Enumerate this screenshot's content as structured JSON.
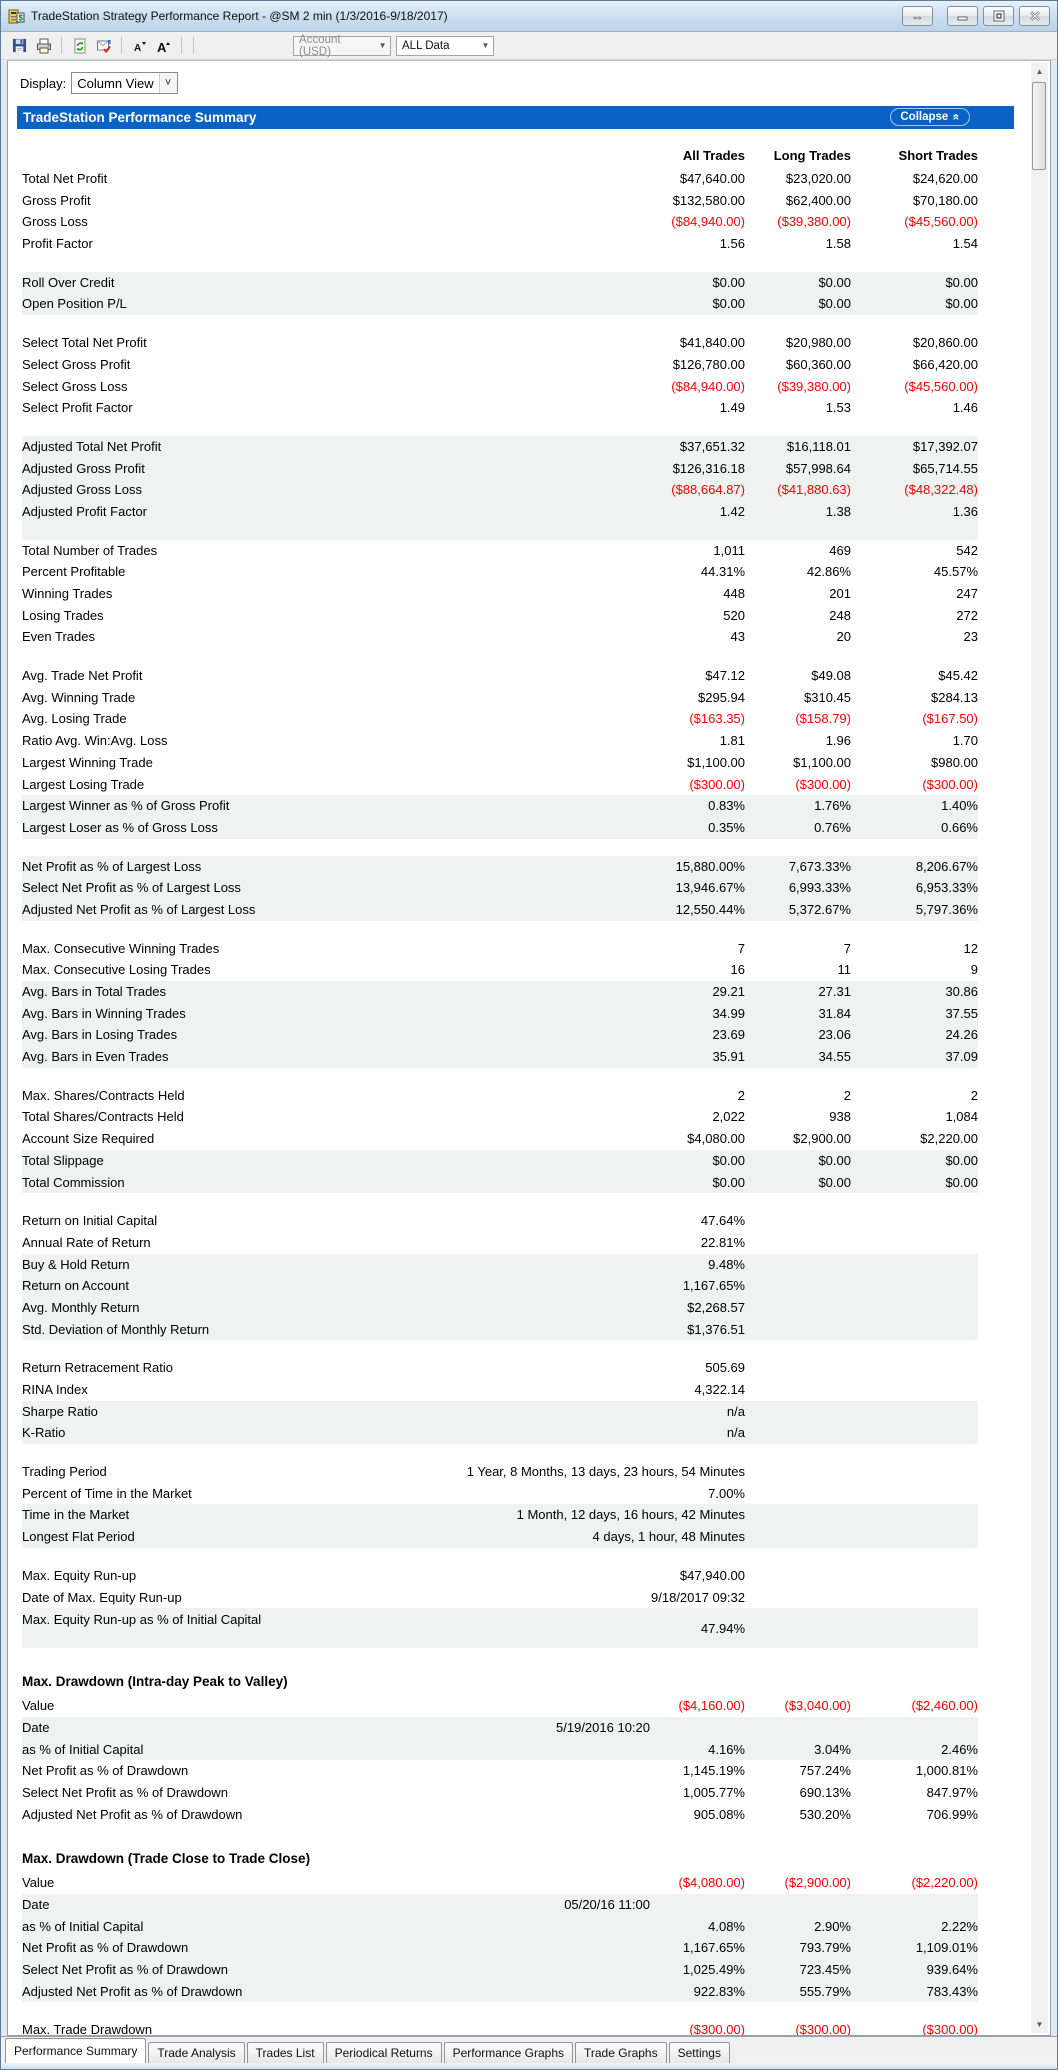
{
  "window": {
    "title": "TradeStation Strategy Performance Report - @SM 2 min (1/3/2016-9/18/2017)",
    "button_icons": [
      "dock-icon",
      "minimize-icon",
      "maximize-icon",
      "close-icon"
    ]
  },
  "toolbar": {
    "icons": [
      "save-icon",
      "print-icon",
      "refresh-icon",
      "export-report-icon",
      "decrease-font-icon",
      "increase-font-icon"
    ],
    "account_dropdown": {
      "value": "Account (USD)",
      "disabled": true
    },
    "data_dropdown": {
      "value": "ALL Data"
    }
  },
  "display": {
    "label": "Display:",
    "value": "Column View"
  },
  "summary_header": {
    "title": "TradeStation Performance Summary",
    "collapse_label": "Collapse"
  },
  "table": {
    "columns": [
      "All Trades",
      "Long Trades",
      "Short Trades"
    ],
    "rows": [
      {
        "label": "Total Net Profit",
        "values": [
          "$47,640.00",
          "$23,020.00",
          "$24,620.00"
        ]
      },
      {
        "label": "Gross Profit",
        "values": [
          "$132,580.00",
          "$62,400.00",
          "$70,180.00"
        ]
      },
      {
        "label": "Gross Loss",
        "values": [
          "($84,940.00)",
          "($39,380.00)",
          "($45,560.00)"
        ],
        "red": true
      },
      {
        "label": "Profit Factor",
        "values": [
          "1.56",
          "1.58",
          "1.54"
        ]
      },
      {
        "blank": true
      },
      {
        "label": "Roll Over Credit",
        "values": [
          "$0.00",
          "$0.00",
          "$0.00"
        ],
        "shade": true
      },
      {
        "label": "Open Position P/L",
        "values": [
          "$0.00",
          "$0.00",
          "$0.00"
        ],
        "shade": true
      },
      {
        "blank": true
      },
      {
        "label": "Select Total Net Profit",
        "values": [
          "$41,840.00",
          "$20,980.00",
          "$20,860.00"
        ]
      },
      {
        "label": "Select Gross Profit",
        "values": [
          "$126,780.00",
          "$60,360.00",
          "$66,420.00"
        ]
      },
      {
        "label": "Select Gross Loss",
        "values": [
          "($84,940.00)",
          "($39,380.00)",
          "($45,560.00)"
        ],
        "red": true
      },
      {
        "label": "Select Profit Factor",
        "values": [
          "1.49",
          "1.53",
          "1.46"
        ]
      },
      {
        "blank": true
      },
      {
        "label": "Adjusted Total Net Profit",
        "values": [
          "$37,651.32",
          "$16,118.01",
          "$17,392.07"
        ],
        "shade": true
      },
      {
        "label": "Adjusted Gross Profit",
        "values": [
          "$126,316.18",
          "$57,998.64",
          "$65,714.55"
        ],
        "shade": true
      },
      {
        "label": "Adjusted Gross Loss",
        "values": [
          "($88,664.87)",
          "($41,880.63)",
          "($48,322.48)"
        ],
        "red": true,
        "shade": true
      },
      {
        "label": "Adjusted Profit Factor",
        "values": [
          "1.42",
          "1.38",
          "1.36"
        ],
        "shade": true
      },
      {
        "blank": true,
        "shade": true
      },
      {
        "label": "Total Number of Trades",
        "values": [
          "1,011",
          "469",
          "542"
        ]
      },
      {
        "label": "Percent Profitable",
        "values": [
          "44.31%",
          "42.86%",
          "45.57%"
        ]
      },
      {
        "label": "Winning Trades",
        "values": [
          "448",
          "201",
          "247"
        ]
      },
      {
        "label": "Losing Trades",
        "values": [
          "520",
          "248",
          "272"
        ]
      },
      {
        "label": "Even Trades",
        "values": [
          "43",
          "20",
          "23"
        ]
      },
      {
        "blank": true
      },
      {
        "label": "Avg. Trade Net Profit",
        "values": [
          "$47.12",
          "$49.08",
          "$45.42"
        ]
      },
      {
        "label": "Avg. Winning Trade",
        "values": [
          "$295.94",
          "$310.45",
          "$284.13"
        ]
      },
      {
        "label": "Avg. Losing Trade",
        "values": [
          "($163.35)",
          "($158.79)",
          "($167.50)"
        ],
        "red": true
      },
      {
        "label": "Ratio Avg. Win:Avg. Loss",
        "values": [
          "1.81",
          "1.96",
          "1.70"
        ]
      },
      {
        "label": "Largest Winning Trade",
        "values": [
          "$1,100.00",
          "$1,100.00",
          "$980.00"
        ]
      },
      {
        "label": "Largest Losing Trade",
        "values": [
          "($300.00)",
          "($300.00)",
          "($300.00)"
        ],
        "red": true
      },
      {
        "label": "Largest Winner as % of Gross Profit",
        "values": [
          "0.83%",
          "1.76%",
          "1.40%"
        ],
        "shade": true
      },
      {
        "label": "Largest Loser as % of Gross Loss",
        "values": [
          "0.35%",
          "0.76%",
          "0.66%"
        ],
        "shade": true
      },
      {
        "blank": true
      },
      {
        "label": "Net Profit as % of Largest Loss",
        "values": [
          "15,880.00%",
          "7,673.33%",
          "8,206.67%"
        ],
        "shade": true
      },
      {
        "label": "Select Net Profit as % of Largest Loss",
        "values": [
          "13,946.67%",
          "6,993.33%",
          "6,953.33%"
        ],
        "shade": true
      },
      {
        "label": "Adjusted Net Profit as % of Largest Loss",
        "values": [
          "12,550.44%",
          "5,372.67%",
          "5,797.36%"
        ],
        "shade": true
      },
      {
        "blank": true
      },
      {
        "label": "Max. Consecutive Winning Trades",
        "values": [
          "7",
          "7",
          "12"
        ]
      },
      {
        "label": "Max. Consecutive Losing Trades",
        "values": [
          "16",
          "11",
          "9"
        ]
      },
      {
        "label": "Avg. Bars in Total Trades",
        "values": [
          "29.21",
          "27.31",
          "30.86"
        ],
        "shade": true
      },
      {
        "label": "Avg. Bars in Winning Trades",
        "values": [
          "34.99",
          "31.84",
          "37.55"
        ],
        "shade": true
      },
      {
        "label": "Avg. Bars in Losing Trades",
        "values": [
          "23.69",
          "23.06",
          "24.26"
        ],
        "shade": true
      },
      {
        "label": "Avg. Bars in Even Trades",
        "values": [
          "35.91",
          "34.55",
          "37.09"
        ],
        "shade": true
      },
      {
        "blank": true
      },
      {
        "label": "Max. Shares/Contracts Held",
        "values": [
          "2",
          "2",
          "2"
        ]
      },
      {
        "label": "Total Shares/Contracts Held",
        "values": [
          "2,022",
          "938",
          "1,084"
        ]
      },
      {
        "label": "Account Size Required",
        "values": [
          "$4,080.00",
          "$2,900.00",
          "$2,220.00"
        ]
      },
      {
        "label": "Total Slippage",
        "values": [
          "$0.00",
          "$0.00",
          "$0.00"
        ],
        "shade": true
      },
      {
        "label": "Total Commission",
        "values": [
          "$0.00",
          "$0.00",
          "$0.00"
        ],
        "shade": true
      },
      {
        "blank": true
      },
      {
        "label": "Return on Initial Capital",
        "values": [
          "47.64%",
          "",
          ""
        ]
      },
      {
        "label": "Annual Rate of Return",
        "values": [
          "22.81%",
          "",
          ""
        ]
      },
      {
        "label": "Buy & Hold Return",
        "values": [
          "9.48%",
          "",
          ""
        ],
        "shade": true
      },
      {
        "label": "Return on Account",
        "values": [
          "1,167.65%",
          "",
          ""
        ],
        "shade": true
      },
      {
        "label": "Avg. Monthly Return",
        "values": [
          "$2,268.57",
          "",
          ""
        ],
        "shade": true
      },
      {
        "label": "Std. Deviation of Monthly Return",
        "values": [
          "$1,376.51",
          "",
          ""
        ],
        "shade": true
      },
      {
        "blank": true
      },
      {
        "label": "Return Retracement Ratio",
        "values": [
          "505.69",
          "",
          ""
        ]
      },
      {
        "label": "RINA Index",
        "values": [
          "4,322.14",
          "",
          ""
        ]
      },
      {
        "label": "Sharpe Ratio",
        "values": [
          "n/a",
          "",
          ""
        ],
        "shade": true
      },
      {
        "label": "K-Ratio",
        "values": [
          "n/a",
          "",
          ""
        ],
        "shade": true
      },
      {
        "blank": true
      },
      {
        "label": "Trading Period",
        "values": [
          "1 Year, 8 Months, 13 days, 23 hours, 54 Minutes",
          "",
          ""
        ]
      },
      {
        "label": "Percent of Time in the Market",
        "values": [
          "7.00%",
          "",
          ""
        ]
      },
      {
        "label": "Time in the Market",
        "values": [
          "1 Month, 12 days, 16 hours, 42 Minutes",
          "",
          ""
        ],
        "shade": true
      },
      {
        "label": "Longest Flat Period",
        "values": [
          "4 days, 1 hour, 48 Minutes",
          "",
          ""
        ],
        "shade": true
      },
      {
        "blank": true
      },
      {
        "label": "Max. Equity Run-up",
        "values": [
          "$47,940.00",
          "",
          ""
        ]
      },
      {
        "label": "Date of Max. Equity Run-up",
        "values": [
          "9/18/2017 09:32",
          "",
          ""
        ]
      },
      {
        "label": "Max. Equity Run-up as % of Initial Capital",
        "values": [
          "47.94%",
          "",
          ""
        ],
        "shade": true,
        "wrap": true
      },
      {
        "blank": true
      },
      {
        "section": "Max. Drawdown (Intra-day Peak to Valley)"
      },
      {
        "label": "Value",
        "values": [
          "($4,160.00)",
          "($3,040.00)",
          "($2,460.00)"
        ],
        "red": true
      },
      {
        "label": "Date",
        "values": [
          "5/19/2016 10:20",
          "",
          ""
        ],
        "shade": true,
        "date": true
      },
      {
        "label": "as % of Initial Capital",
        "values": [
          "4.16%",
          "3.04%",
          "2.46%"
        ],
        "shade": true
      },
      {
        "label": "Net Profit as % of Drawdown",
        "values": [
          "1,145.19%",
          "757.24%",
          "1,000.81%"
        ]
      },
      {
        "label": "Select Net Profit as % of Drawdown",
        "values": [
          "1,005.77%",
          "690.13%",
          "847.97%"
        ]
      },
      {
        "label": "Adjusted Net Profit as % of Drawdown",
        "values": [
          "905.08%",
          "530.20%",
          "706.99%"
        ]
      },
      {
        "blank": true
      },
      {
        "section": "Max. Drawdown (Trade Close to Trade Close)"
      },
      {
        "label": "Value",
        "values": [
          "($4,080.00)",
          "($2,900.00)",
          "($2,220.00)"
        ],
        "red": true
      },
      {
        "label": "Date",
        "values": [
          "05/20/16 11:00",
          "",
          ""
        ],
        "shade": true,
        "date": true
      },
      {
        "label": "as % of Initial Capital",
        "values": [
          "4.08%",
          "2.90%",
          "2.22%"
        ],
        "shade": true
      },
      {
        "label": "Net Profit as % of Drawdown",
        "values": [
          "1,167.65%",
          "793.79%",
          "1,109.01%"
        ],
        "shade": true
      },
      {
        "label": "Select Net Profit as % of Drawdown",
        "values": [
          "1,025.49%",
          "723.45%",
          "939.64%"
        ],
        "shade": true
      },
      {
        "label": "Adjusted Net Profit as % of Drawdown",
        "values": [
          "922.83%",
          "555.79%",
          "783.43%"
        ],
        "shade": true
      },
      {
        "blank": true
      },
      {
        "label": "Max. Trade Drawdown",
        "values": [
          "($300.00)",
          "($300.00)",
          "($300.00)"
        ],
        "red": true
      }
    ]
  },
  "tabs": {
    "active": "Performance Summary",
    "items": [
      "Performance Summary",
      "Trade Analysis",
      "Trades List",
      "Periodical Returns",
      "Performance Graphs",
      "Trade Graphs",
      "Settings"
    ]
  },
  "colors": {
    "accent_blue": "#0b62c6",
    "loss_red": "#ff0000",
    "row_shade": "#f0f1f1"
  }
}
